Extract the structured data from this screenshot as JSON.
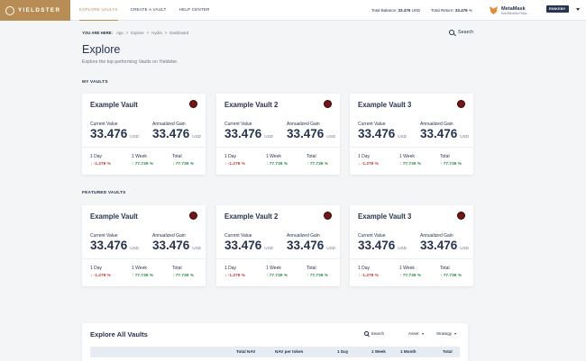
{
  "brand": {
    "name": "YIELDSTER"
  },
  "nav": [
    {
      "label": "EXPLORE VAULTS",
      "active": true
    },
    {
      "label": "CREATE A VAULT",
      "active": false
    },
    {
      "label": "HELP CENTER",
      "active": false
    }
  ],
  "balances": {
    "total_balance_label": "Total Balance:",
    "total_balance_value": "33.476",
    "total_balance_unit": "USD",
    "total_return_label": "Total Return:",
    "total_return_value": "33.476",
    "total_return_unit": "%"
  },
  "wallet": {
    "icon": "metamask-fox-icon",
    "name": "MetaMask",
    "address": "0xb35bcf5e7b0a...",
    "network": "RINKEBY"
  },
  "breadcrumb": {
    "here": "YOU ARE HERE:",
    "items": [
      "App",
      "Explore",
      "Hydra",
      "Dashboard"
    ]
  },
  "search_label": "Search",
  "page": {
    "title": "Explore",
    "subtitle": "Explore the top performing Vaults on Yieldster."
  },
  "labels": {
    "current_value": "Current Value",
    "annualized_gain": "Annualized Gain",
    "unit_usd": "USD",
    "day": "1 Day",
    "week": "1 Week",
    "total": "Total"
  },
  "sections": {
    "my_vaults": "MY VAULTS",
    "featured_vaults": "FEATURED VAULTS"
  },
  "my_vaults": [
    {
      "name": "Example Vault",
      "current_value": "33.476",
      "annualized_gain": "33.476",
      "day": "↓ -1.278 %",
      "week": "↑ 77.739 %",
      "total": "↑ 77.739 %"
    },
    {
      "name": "Example Vault 2",
      "current_value": "33.476",
      "annualized_gain": "33.476",
      "day": "↓ -1.278 %",
      "week": "↑ 77.739 %",
      "total": "↑ 77.739 %"
    },
    {
      "name": "Example Vault 3",
      "current_value": "33.476",
      "annualized_gain": "33.476",
      "day": "↓ -1.278 %",
      "week": "↑ 77.739 %",
      "total": "↑ 77.739 %"
    }
  ],
  "featured_vaults": [
    {
      "name": "Example Vault",
      "current_value": "33.476",
      "annualized_gain": "33.476",
      "day": "↓ -1.278 %",
      "week": "↑ 77.739 %",
      "total": "↑ 77.739 %"
    },
    {
      "name": "Example Vault 2",
      "current_value": "33.476",
      "annualized_gain": "33.476",
      "day": "↓ -1.278 %",
      "week": "↑ 77.739 %",
      "total": "↑ 77.739 %"
    },
    {
      "name": "Example Vault 3",
      "current_value": "33.476",
      "annualized_gain": "33.476",
      "day": "↓ -1.278 %",
      "week": "↑ 77.739 %",
      "total": "↑ 77.739 %"
    }
  ],
  "explore_all": {
    "title": "Explore All Vaults",
    "search": "Search",
    "filters": [
      "Asset",
      "Strategy"
    ],
    "columns": [
      "Total NAV",
      "NAV per token",
      "1 Day",
      "1 Week",
      "1 Month",
      "Total"
    ]
  },
  "colors": {
    "brand": "#b88d55",
    "navy": "#25344f",
    "negative": "#c23a3a",
    "positive": "#2e8b4a"
  }
}
